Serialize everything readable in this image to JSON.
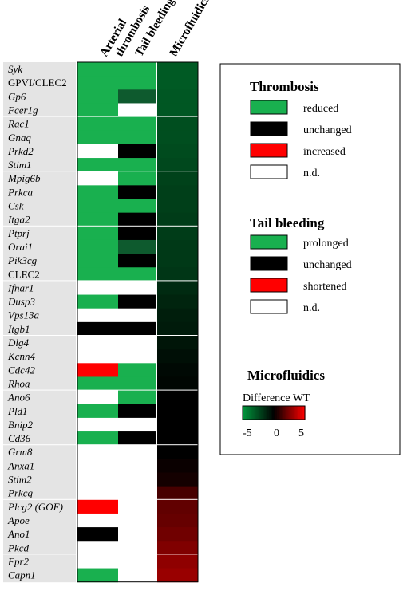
{
  "columns": {
    "arterial_thrombosis": [
      "Arterial",
      "thrombosis"
    ],
    "tail_bleeding": "Tail bleeding",
    "microfluidics": "Microfluidics"
  },
  "colors": {
    "green": "#19b04f",
    "dark_green": "#0e5a2e",
    "black": "#000000",
    "red": "#ff0000",
    "white": "#ffffff",
    "label_bg": "#e4e4e4"
  },
  "groups": [
    [
      {
        "gene": "Syk",
        "thr": "green",
        "tail": "green",
        "micro": -3.0
      },
      {
        "gene": "GPVI/CLEC2",
        "italic": false,
        "thr": "green",
        "tail": "green",
        "micro": -3.0
      },
      {
        "gene": "Gp6",
        "thr": "green",
        "tail": "dark_green",
        "micro": -2.9
      },
      {
        "gene": "Fcer1g",
        "thr": "green",
        "tail": "white",
        "micro": -2.9
      }
    ],
    [
      {
        "gene": "Rac1",
        "thr": "green",
        "tail": "green",
        "micro": -2.6
      },
      {
        "gene": "Gnaq",
        "thr": "green",
        "tail": "green",
        "micro": -2.6
      },
      {
        "gene": "Prkd2",
        "thr": "white",
        "tail": "black",
        "micro": -2.5
      },
      {
        "gene": "Stim1",
        "thr": "green",
        "tail": "green",
        "micro": -2.4
      }
    ],
    [
      {
        "gene": "Mpig6b",
        "thr": "white",
        "tail": "green",
        "micro": -2.2
      },
      {
        "gene": "Prkca",
        "thr": "green",
        "tail": "black",
        "micro": -2.1
      },
      {
        "gene": "Csk",
        "thr": "green",
        "tail": "green",
        "micro": -2.1
      },
      {
        "gene": "Itga2",
        "thr": "green",
        "tail": "black",
        "micro": -2.0
      }
    ],
    [
      {
        "gene": "Ptprj",
        "thr": "green",
        "tail": "black",
        "micro": -2.0
      },
      {
        "gene": "Orai1",
        "thr": "green",
        "tail": "dark_green",
        "micro": -1.9
      },
      {
        "gene": "Pik3cg",
        "thr": "green",
        "tail": "black",
        "micro": -1.9
      },
      {
        "gene": "CLEC2",
        "italic": false,
        "thr": "green",
        "tail": "green",
        "micro": -1.8
      }
    ],
    [
      {
        "gene": "Ifnar1",
        "thr": "white",
        "tail": "white",
        "micro": -1.4
      },
      {
        "gene": "Dusp3",
        "thr": "green",
        "tail": "black",
        "micro": -1.2
      },
      {
        "gene": "Vps13a",
        "thr": "white",
        "tail": "white",
        "micro": -1.0
      },
      {
        "gene": "Itgb1",
        "thr": "black",
        "tail": "black",
        "micro": -0.9
      }
    ],
    [
      {
        "gene": "Dlg4",
        "thr": "white",
        "tail": "white",
        "micro": -0.7
      },
      {
        "gene": "Kcnn4",
        "thr": "white",
        "tail": "white",
        "micro": -0.5
      },
      {
        "gene": "Cdc42",
        "thr": "red",
        "tail": "green",
        "micro": -0.3
      },
      {
        "gene": "Rhoa",
        "thr": "green",
        "tail": "green",
        "micro": -0.2
      }
    ],
    [
      {
        "gene": "Ano6",
        "thr": "white",
        "tail": "green",
        "micro": 0
      },
      {
        "gene": "Pld1",
        "thr": "green",
        "tail": "black",
        "micro": 0
      },
      {
        "gene": "Bnip2",
        "thr": "white",
        "tail": "white",
        "micro": 0
      },
      {
        "gene": "Cd36",
        "thr": "green",
        "tail": "black",
        "micro": 0
      }
    ],
    [
      {
        "gene": "Grm8",
        "thr": "white",
        "tail": "white",
        "micro": 0
      },
      {
        "gene": "Anxa1",
        "thr": "white",
        "tail": "white",
        "micro": 0.2
      },
      {
        "gene": "Stim2",
        "thr": "white",
        "tail": "white",
        "micro": 0.4
      },
      {
        "gene": "Prkcq",
        "thr": "white",
        "tail": "white",
        "micro": 1.4
      }
    ],
    [
      {
        "gene": "Plcg2 (GOF)",
        "thr": "red",
        "tail": "white",
        "micro": 1.9
      },
      {
        "gene": "Apoe",
        "thr": "white",
        "tail": "white",
        "micro": 2.0
      },
      {
        "gene": "Ano1",
        "thr": "black",
        "tail": "white",
        "micro": 2.2
      },
      {
        "gene": "Pkcd",
        "thr": "white",
        "tail": "white",
        "micro": 2.5
      }
    ],
    [
      {
        "gene": "Fpr2",
        "thr": "white",
        "tail": "white",
        "micro": 2.8
      },
      {
        "gene": "Capn1",
        "thr": "green",
        "tail": "white",
        "micro": 3.0
      }
    ]
  ],
  "legend": {
    "thrombosis": {
      "title": "Thrombosis",
      "items": [
        {
          "color": "green",
          "label": "reduced"
        },
        {
          "color": "black",
          "label": "unchanged"
        },
        {
          "color": "red",
          "label": "increased"
        },
        {
          "color": "white",
          "label": "n.d."
        }
      ]
    },
    "tail": {
      "title": "Tail bleeding",
      "items": [
        {
          "color": "green",
          "label": "prolonged"
        },
        {
          "color": "black",
          "label": "unchanged"
        },
        {
          "color": "red",
          "label": "shortened"
        },
        {
          "color": "white",
          "label": "n.d."
        }
      ]
    },
    "micro": {
      "title": "Microfluidics",
      "subtitle": "Difference WT",
      "ticks": [
        "-5",
        "0",
        "5"
      ],
      "range": [
        -5,
        5
      ]
    }
  }
}
